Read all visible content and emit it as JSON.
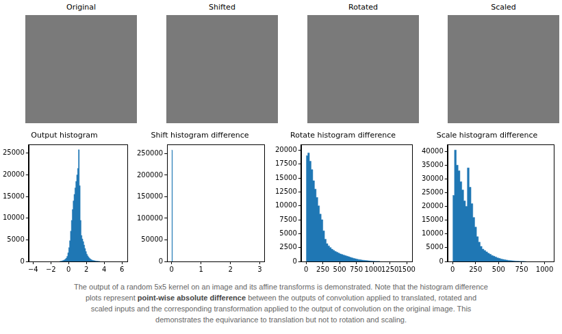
{
  "images": [
    {
      "title": "Original"
    },
    {
      "title": "Shifted"
    },
    {
      "title": "Rotated"
    },
    {
      "title": "Scaled"
    }
  ],
  "chart_data": [
    {
      "type": "histogram",
      "title": "Output histogram",
      "color": "#1f77b4",
      "grid": false,
      "bins": [
        -1.0,
        -0.9,
        -0.8,
        -0.7,
        -0.6,
        -0.5,
        -0.4,
        -0.3,
        -0.2,
        -0.1,
        0.0,
        0.1,
        0.2,
        0.3,
        0.4,
        0.5,
        0.6,
        0.7,
        0.8,
        0.9,
        1.0,
        1.1,
        1.2,
        1.3,
        1.4,
        1.5,
        1.6,
        1.7,
        1.8,
        1.9,
        2.0,
        2.1,
        2.2,
        2.3,
        2.4,
        2.5,
        2.6,
        2.7,
        2.8,
        2.9,
        3.0,
        3.1,
        3.2,
        3.3,
        3.4,
        3.5
      ],
      "counts": [
        50,
        80,
        120,
        180,
        260,
        380,
        550,
        800,
        1200,
        2000,
        3200,
        4800,
        7000,
        9500,
        12000,
        14000,
        15500,
        17000,
        18500,
        20000,
        21500,
        25800,
        17500,
        9500,
        6000,
        5200,
        4600,
        3800,
        3000,
        2300,
        1700,
        1300,
        1000,
        750,
        550,
        420,
        320,
        250,
        190,
        150,
        110,
        80,
        60,
        45,
        30
      ],
      "xlim": [
        -4.5,
        6.6
      ],
      "xticks": [
        {
          "value": -4,
          "label": "−4"
        },
        {
          "value": -2,
          "label": "−2"
        },
        0,
        2,
        4,
        6
      ],
      "ylim": [
        0,
        27000
      ],
      "yticks": [
        0,
        5000,
        10000,
        15000,
        20000,
        25000
      ]
    },
    {
      "type": "histogram",
      "title": "Shift histogram difference",
      "color": "#1f77b4",
      "grid": false,
      "bins": [
        0,
        0.03
      ],
      "counts": [
        258000
      ],
      "xlim": [
        -0.15,
        3.15
      ],
      "xticks": [
        0,
        1,
        2,
        3
      ],
      "ylim": [
        0,
        271000
      ],
      "yticks": [
        0,
        50000,
        100000,
        150000,
        200000,
        250000
      ]
    },
    {
      "type": "histogram",
      "title": "Rotate histogram difference",
      "color": "#1f77b4",
      "grid": false,
      "bins": [
        0,
        25,
        50,
        75,
        100,
        125,
        150,
        175,
        200,
        225,
        250,
        275,
        300,
        325,
        350,
        375,
        400,
        425,
        450,
        475,
        500,
        525,
        550,
        575,
        600,
        625,
        650,
        675,
        700,
        725,
        750,
        775,
        800,
        825,
        850,
        875,
        900,
        925,
        950,
        975,
        1000,
        1025,
        1050,
        1075,
        1100
      ],
      "counts": [
        19000,
        19500,
        18000,
        16500,
        14500,
        13000,
        11500,
        10000,
        8500,
        7500,
        5500,
        4000,
        3200,
        2800,
        2500,
        2200,
        2000,
        1800,
        1650,
        1500,
        1350,
        1250,
        1150,
        1050,
        950,
        850,
        750,
        650,
        560,
        480,
        410,
        350,
        300,
        250,
        210,
        170,
        140,
        110,
        90,
        70,
        55,
        40,
        30,
        20
      ],
      "xlim": [
        -75,
        1580
      ],
      "xticks": [
        0,
        250,
        500,
        750,
        1000,
        1250,
        1500
      ],
      "ylim": [
        0,
        21000
      ],
      "yticks": [
        0,
        2500,
        5000,
        7500,
        10000,
        12500,
        15000,
        17500,
        20000
      ]
    },
    {
      "type": "histogram",
      "title": "Scale histogram difference",
      "color": "#1f77b4",
      "grid": false,
      "bins": [
        0,
        20,
        40,
        60,
        80,
        100,
        120,
        140,
        160,
        180,
        200,
        220,
        240,
        260,
        280,
        300,
        320,
        340,
        360,
        380,
        400,
        420,
        440,
        460,
        480,
        500,
        520,
        540,
        560,
        580,
        600,
        620,
        640,
        660,
        680,
        700,
        720,
        740,
        760,
        780,
        800
      ],
      "counts": [
        24000,
        40500,
        35000,
        33000,
        29000,
        26000,
        22000,
        20000,
        34000,
        27000,
        21000,
        16000,
        12500,
        9000,
        7000,
        5500,
        4500,
        4000,
        3500,
        3000,
        2600,
        2200,
        1900,
        1600,
        1300,
        1100,
        900,
        750,
        600,
        500,
        400,
        320,
        250,
        200,
        150,
        110,
        80,
        60,
        40,
        25
      ],
      "xlim": [
        -55,
        1100
      ],
      "xticks": [
        0,
        250,
        500,
        750,
        1000
      ],
      "ylim": [
        0,
        42500
      ],
      "yticks": [
        0,
        5000,
        10000,
        15000,
        20000,
        25000,
        30000,
        35000,
        40000
      ]
    }
  ],
  "caption": [
    {
      "text": "The output of a random 5x5 kernel on an image and its affine transforms is demonstrated. Note that the histogram difference plots represent "
    },
    {
      "text": "point-wise absolute difference",
      "bold": true
    },
    {
      "text": " between the outputs of convolution applied to translated, rotated and scaled inputs and the corresponding transformation applied to the output of convolution on the original image. This demonstrates the equivariance to translation but not to rotation and scaling."
    }
  ]
}
